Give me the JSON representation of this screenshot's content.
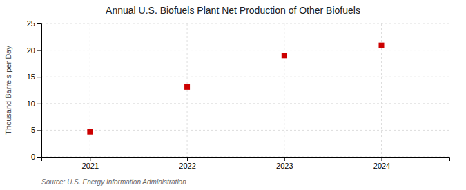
{
  "chart_data": {
    "type": "scatter",
    "title": "Annual U.S. Biofuels Plant Net Production of Other Biofuels",
    "ylabel": "Thousand Barrels per Day",
    "annotation": "Source: U.S. Energy Information Administration",
    "x": [
      2021,
      2022,
      2023,
      2024
    ],
    "values": [
      4.7,
      13.1,
      19.0,
      20.9
    ],
    "color": "#cc0000",
    "marker": "square",
    "xlim": [
      2020.5,
      2024.7
    ],
    "xticks": [
      2021,
      2022,
      2023,
      2024
    ],
    "ylim": [
      0,
      25
    ],
    "yticks": [
      0,
      5,
      10,
      15,
      20,
      25
    ],
    "grid": true
  }
}
